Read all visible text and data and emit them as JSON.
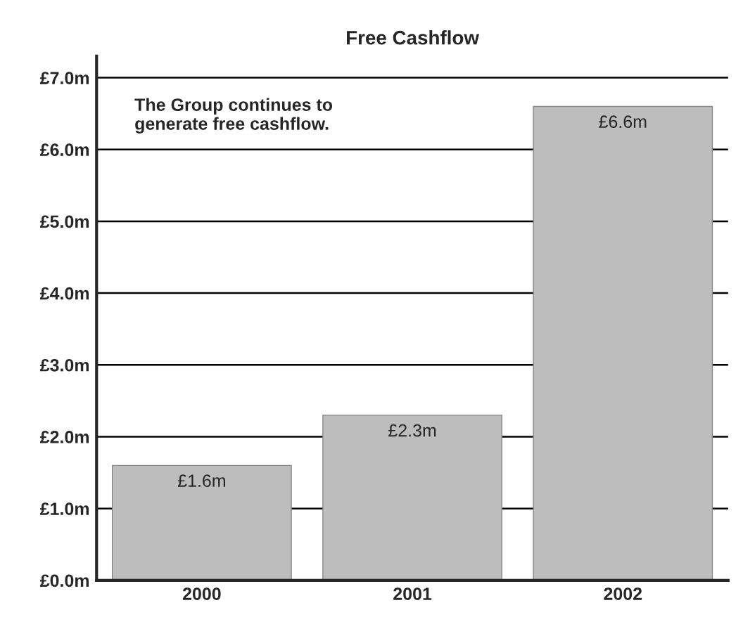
{
  "chart_data": {
    "type": "bar",
    "title": "Free Cashflow",
    "categories": [
      "2000",
      "2001",
      "2002"
    ],
    "values": [
      1.6,
      2.3,
      6.6
    ],
    "value_labels": [
      "£1.6m",
      "£2.3m",
      "£6.6m"
    ],
    "color": "#bdbdbd",
    "ylim": [
      0,
      7.3
    ],
    "yticks": [
      {
        "value": 0,
        "label": "£0.0m"
      },
      {
        "value": 1,
        "label": "£1.0m"
      },
      {
        "value": 2,
        "label": "£2.0m"
      },
      {
        "value": 3,
        "label": "£3.0m"
      },
      {
        "value": 4,
        "label": "£4.0m"
      },
      {
        "value": 5,
        "label": "£5.0m"
      },
      {
        "value": 6,
        "label": "£6.0m"
      },
      {
        "value": 7,
        "label": "£7.0m"
      }
    ],
    "grid": "y",
    "annotations": [
      "The Group continues to\ngenerate free cashflow."
    ]
  }
}
